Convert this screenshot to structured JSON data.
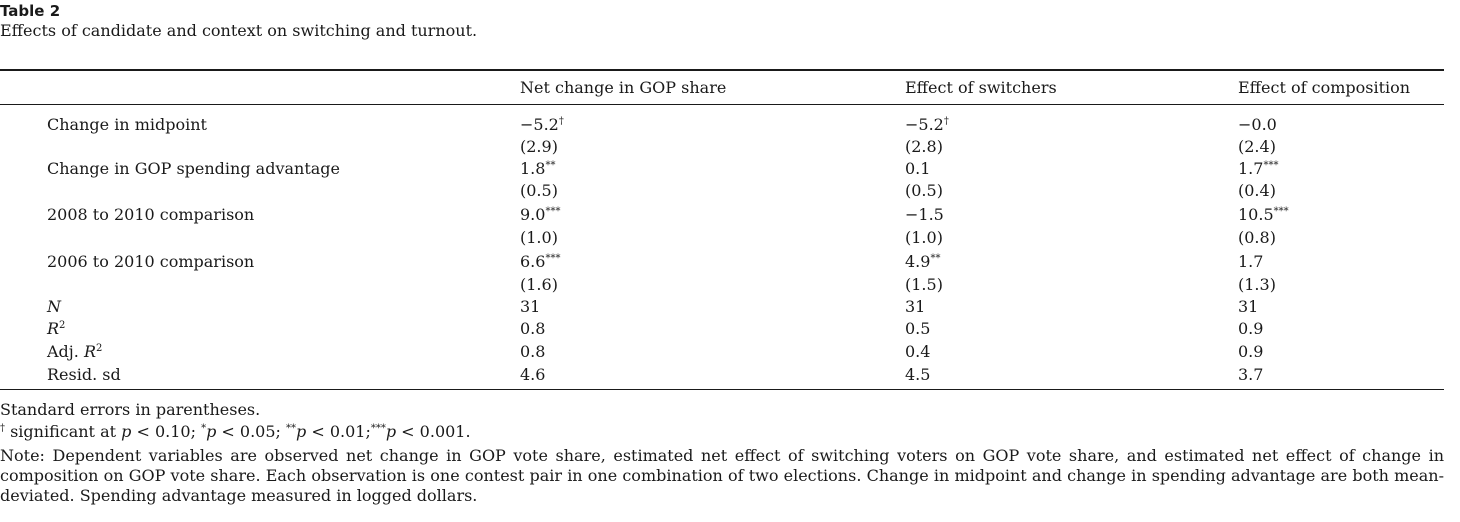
{
  "caption": {
    "title": "Table 2",
    "subtitle": "Effects of candidate and context on switching and turnout."
  },
  "table": {
    "headers": [
      "",
      "Net change in GOP share",
      "Effect of switchers",
      "Effect of composition"
    ],
    "rows": [
      {
        "label": "Change in midpoint",
        "values": [
          "−5.2",
          "−5.2",
          "−0.0"
        ],
        "marks": [
          "†",
          "†",
          ""
        ],
        "se": [
          "(2.9)",
          "(2.8)",
          "(2.4)"
        ]
      },
      {
        "label": "Change in GOP spending advantage",
        "values": [
          "1.8",
          "0.1",
          "1.7"
        ],
        "marks": [
          "**",
          "",
          "***"
        ],
        "se": [
          "(0.5)",
          "(0.5)",
          "(0.4)"
        ]
      },
      {
        "label": "2008 to 2010 comparison",
        "values": [
          "9.0",
          "−1.5",
          "10.5"
        ],
        "marks": [
          "***",
          "",
          "***"
        ],
        "se": [
          "(1.0)",
          "(1.0)",
          "(0.8)"
        ]
      },
      {
        "label": "2006 to 2010 comparison",
        "values": [
          "6.6",
          "4.9",
          "1.7"
        ],
        "marks": [
          "***",
          "**",
          ""
        ],
        "se": [
          "(1.6)",
          "(1.5)",
          "(1.3)"
        ]
      }
    ],
    "stats": [
      {
        "label": "N",
        "values": [
          "31",
          "31",
          "31"
        ]
      },
      {
        "label": "R",
        "sup": "2",
        "values": [
          "0.8",
          "0.5",
          "0.9"
        ]
      },
      {
        "label": "Adj. ",
        "label_it": "R",
        "sup": "2",
        "values": [
          "0.8",
          "0.4",
          "0.9"
        ]
      },
      {
        "label": "Resid. sd",
        "values": [
          "4.6",
          "4.5",
          "3.7"
        ]
      }
    ]
  },
  "footnotes": {
    "se_note": "Standard errors in parentheses.",
    "sig": {
      "dagger": "†",
      "t1": " significant at ",
      "p": "p",
      "v1": " < 0.10; ",
      "s1": "*",
      "v2": " < 0.05; ",
      "s2": "**",
      "v3": " < 0.01;",
      "s3": "***",
      "v4": " < 0.001."
    },
    "note": "Note: Dependent variables are observed net change in GOP vote share, estimated net effect of switching voters on GOP vote share, and estimated net effect of change in composition on GOP vote share. Each observation is one contest pair in one combination of two elections. Change in midpoint and change in spending advantage are both mean-deviated. Spending advantage measured in logged dollars."
  }
}
